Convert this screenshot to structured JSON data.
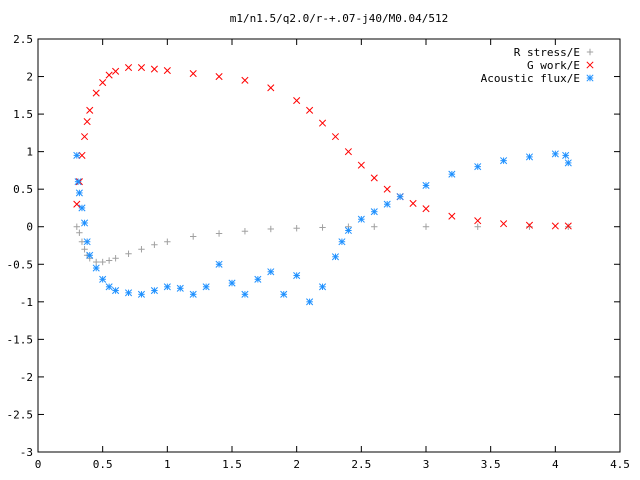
{
  "chart_data": {
    "type": "scatter",
    "title": "m1/n1.5/q2.0/r-+.07-j40/M0.04/512",
    "xlabel": "",
    "ylabel": "",
    "xlim": [
      0,
      4.5
    ],
    "ylim": [
      -3,
      2.5
    ],
    "xticks": [
      0,
      0.5,
      1,
      1.5,
      2,
      2.5,
      3,
      3.5,
      4,
      4.5
    ],
    "yticks": [
      -3,
      -2.5,
      -2,
      -1.5,
      -1,
      -0.5,
      0,
      0.5,
      1,
      1.5,
      2,
      2.5
    ],
    "grid": false,
    "legend_position": "top-right",
    "series": [
      {
        "name": "R stress/E",
        "marker": "plus",
        "color": "#a0a0a0",
        "points": [
          [
            0.3,
            0
          ],
          [
            0.32,
            -0.08
          ],
          [
            0.34,
            -0.2
          ],
          [
            0.36,
            -0.3
          ],
          [
            0.38,
            -0.38
          ],
          [
            0.4,
            -0.42
          ],
          [
            0.45,
            -0.47
          ],
          [
            0.5,
            -0.47
          ],
          [
            0.55,
            -0.45
          ],
          [
            0.6,
            -0.42
          ],
          [
            0.7,
            -0.36
          ],
          [
            0.8,
            -0.3
          ],
          [
            0.9,
            -0.24
          ],
          [
            1.0,
            -0.2
          ],
          [
            1.2,
            -0.13
          ],
          [
            1.4,
            -0.09
          ],
          [
            1.6,
            -0.06
          ],
          [
            1.8,
            -0.03
          ],
          [
            2.0,
            -0.02
          ],
          [
            2.2,
            -0.01
          ],
          [
            2.4,
            0
          ],
          [
            2.6,
            0
          ],
          [
            3.0,
            0
          ],
          [
            3.4,
            0
          ],
          [
            3.8,
            0
          ],
          [
            4.1,
            0
          ]
        ]
      },
      {
        "name": "G work/E",
        "marker": "cross",
        "color": "#ff0000",
        "points": [
          [
            0.3,
            0.3
          ],
          [
            0.32,
            0.6
          ],
          [
            0.34,
            0.95
          ],
          [
            0.36,
            1.2
          ],
          [
            0.38,
            1.4
          ],
          [
            0.4,
            1.55
          ],
          [
            0.45,
            1.78
          ],
          [
            0.5,
            1.92
          ],
          [
            0.55,
            2.02
          ],
          [
            0.6,
            2.07
          ],
          [
            0.7,
            2.12
          ],
          [
            0.8,
            2.12
          ],
          [
            0.9,
            2.1
          ],
          [
            1.0,
            2.08
          ],
          [
            1.2,
            2.04
          ],
          [
            1.4,
            2.0
          ],
          [
            1.6,
            1.95
          ],
          [
            1.8,
            1.85
          ],
          [
            2.0,
            1.68
          ],
          [
            2.1,
            1.55
          ],
          [
            2.2,
            1.38
          ],
          [
            2.3,
            1.2
          ],
          [
            2.4,
            1.0
          ],
          [
            2.5,
            0.82
          ],
          [
            2.6,
            0.65
          ],
          [
            2.7,
            0.5
          ],
          [
            2.8,
            0.4
          ],
          [
            2.9,
            0.31
          ],
          [
            3.0,
            0.24
          ],
          [
            3.2,
            0.14
          ],
          [
            3.4,
            0.08
          ],
          [
            3.6,
            0.04
          ],
          [
            3.8,
            0.02
          ],
          [
            4.0,
            0.01
          ],
          [
            4.1,
            0.01
          ]
        ]
      },
      {
        "name": "Acoustic flux/E",
        "marker": "star",
        "color": "#1e90ff",
        "points": [
          [
            0.3,
            0.95
          ],
          [
            0.31,
            0.6
          ],
          [
            0.32,
            0.45
          ],
          [
            0.34,
            0.25
          ],
          [
            0.36,
            0.05
          ],
          [
            0.38,
            -0.2
          ],
          [
            0.4,
            -0.38
          ],
          [
            0.45,
            -0.55
          ],
          [
            0.5,
            -0.7
          ],
          [
            0.55,
            -0.8
          ],
          [
            0.6,
            -0.85
          ],
          [
            0.7,
            -0.88
          ],
          [
            0.8,
            -0.9
          ],
          [
            0.9,
            -0.85
          ],
          [
            1.0,
            -0.8
          ],
          [
            1.1,
            -0.82
          ],
          [
            1.2,
            -0.9
          ],
          [
            1.3,
            -0.8
          ],
          [
            1.4,
            -0.5
          ],
          [
            1.5,
            -0.75
          ],
          [
            1.6,
            -0.9
          ],
          [
            1.7,
            -0.7
          ],
          [
            1.8,
            -0.6
          ],
          [
            1.9,
            -0.9
          ],
          [
            2.0,
            -0.65
          ],
          [
            2.1,
            -1.0
          ],
          [
            2.2,
            -0.8
          ],
          [
            2.3,
            -0.4
          ],
          [
            2.35,
            -0.2
          ],
          [
            2.4,
            -0.05
          ],
          [
            2.5,
            0.1
          ],
          [
            2.6,
            0.2
          ],
          [
            2.7,
            0.3
          ],
          [
            2.8,
            0.4
          ],
          [
            3.0,
            0.55
          ],
          [
            3.2,
            0.7
          ],
          [
            3.4,
            0.8
          ],
          [
            3.6,
            0.88
          ],
          [
            3.8,
            0.93
          ],
          [
            4.0,
            0.97
          ],
          [
            4.08,
            0.95
          ],
          [
            4.1,
            0.85
          ]
        ]
      }
    ]
  }
}
